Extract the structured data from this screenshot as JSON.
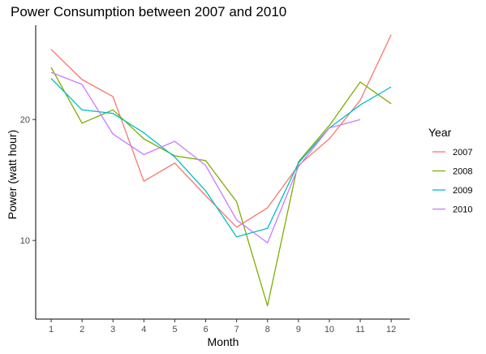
{
  "chart_data": {
    "type": "line",
    "title": "Power Consumption between 2007 and 2010",
    "xlabel": "Month",
    "ylabel": "Power (watt hour)",
    "x": [
      1,
      2,
      3,
      4,
      5,
      6,
      7,
      8,
      9,
      10,
      11,
      12
    ],
    "xlim": [
      0.5,
      12.6
    ],
    "ylim": [
      3.5,
      27.8
    ],
    "y_ticks": [
      10,
      20
    ],
    "grid": false,
    "legend": {
      "title": "Year",
      "placement": "right"
    },
    "series": [
      {
        "name": "2007",
        "color": "#F8766D",
        "values": [
          25.8,
          23.3,
          21.9,
          14.9,
          16.4,
          13.7,
          11.1,
          12.7,
          16.2,
          18.4,
          21.6,
          27.0
        ]
      },
      {
        "name": "2008",
        "color": "#7CAE00",
        "values": [
          24.3,
          19.7,
          20.8,
          18.4,
          17.0,
          16.6,
          13.2,
          4.6,
          16.5,
          19.5,
          23.1,
          21.3
        ]
      },
      {
        "name": "2009",
        "color": "#00BFC4",
        "values": [
          23.4,
          20.8,
          20.5,
          18.9,
          16.9,
          14.1,
          10.3,
          11.0,
          16.4,
          19.3,
          21.2,
          22.7
        ]
      },
      {
        "name": "2010",
        "color": "#C77CFF",
        "values": [
          23.9,
          22.9,
          18.8,
          17.1,
          18.2,
          16.2,
          11.7,
          9.8,
          16.1,
          19.3,
          20.0,
          null
        ]
      }
    ]
  }
}
